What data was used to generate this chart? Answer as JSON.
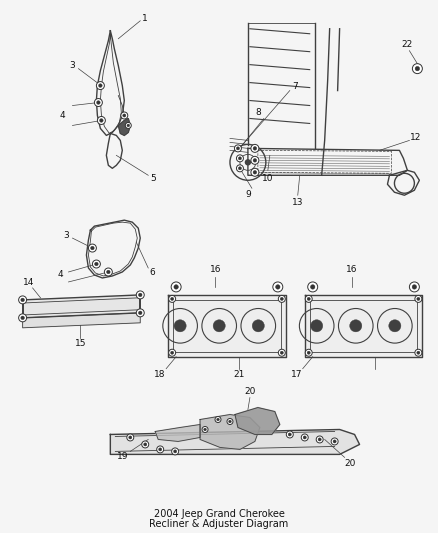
{
  "bg_color": "#f5f5f5",
  "line_color": "#404040",
  "label_color": "#111111",
  "fig_width": 4.38,
  "fig_height": 5.33,
  "dpi": 100
}
